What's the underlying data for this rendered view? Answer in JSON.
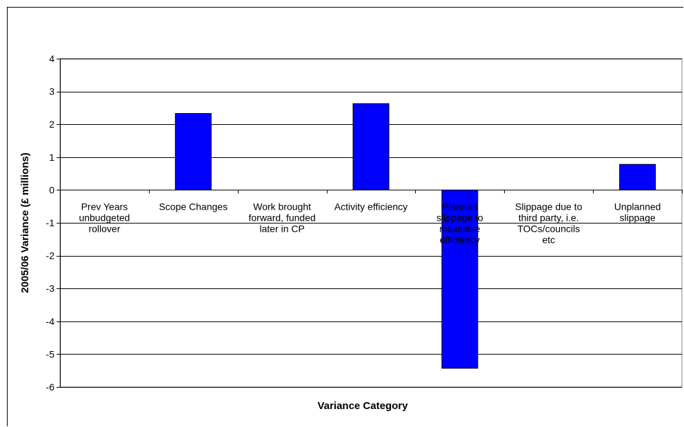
{
  "chart_data": {
    "type": "bar",
    "title": "",
    "xlabel": "Variance Category",
    "ylabel": "2005/06 Variance (£ millions)",
    "ylim": [
      -6,
      4
    ],
    "yticks": [
      4,
      3,
      2,
      1,
      0,
      -1,
      -2,
      -3,
      -4,
      -5,
      -6
    ],
    "grid": true,
    "legend": "none",
    "categories": [
      "Prev Years unbudgeted rollover",
      "Scope Changes",
      "Work brought forward, funded later in CP",
      "Activity efficiency",
      "Planned slippage to maximise efficiency",
      "Slippage due to third party, i.e. TOCs/councils etc",
      "Unplanned slippage"
    ],
    "category_label_lines": [
      [
        "Prev Years",
        "unbudgeted",
        "rollover"
      ],
      [
        "Scope Changes"
      ],
      [
        "Work brought",
        "forward, funded",
        "later in CP"
      ],
      [
        "Activity efficiency"
      ],
      [
        "Planned",
        "slippage to",
        "maximise",
        "efficiency"
      ],
      [
        "Slippage due to",
        "third party, i.e.",
        "TOCs/councils",
        "etc"
      ],
      [
        "Unplanned",
        "slippage"
      ]
    ],
    "values": [
      0,
      2.33,
      0,
      2.63,
      -5.43,
      0,
      0.78
    ],
    "colors": {
      "bar": "#0000FF",
      "bar_border": "#000000",
      "plot_background": "#FFFFFF",
      "grid": "#000000"
    }
  }
}
